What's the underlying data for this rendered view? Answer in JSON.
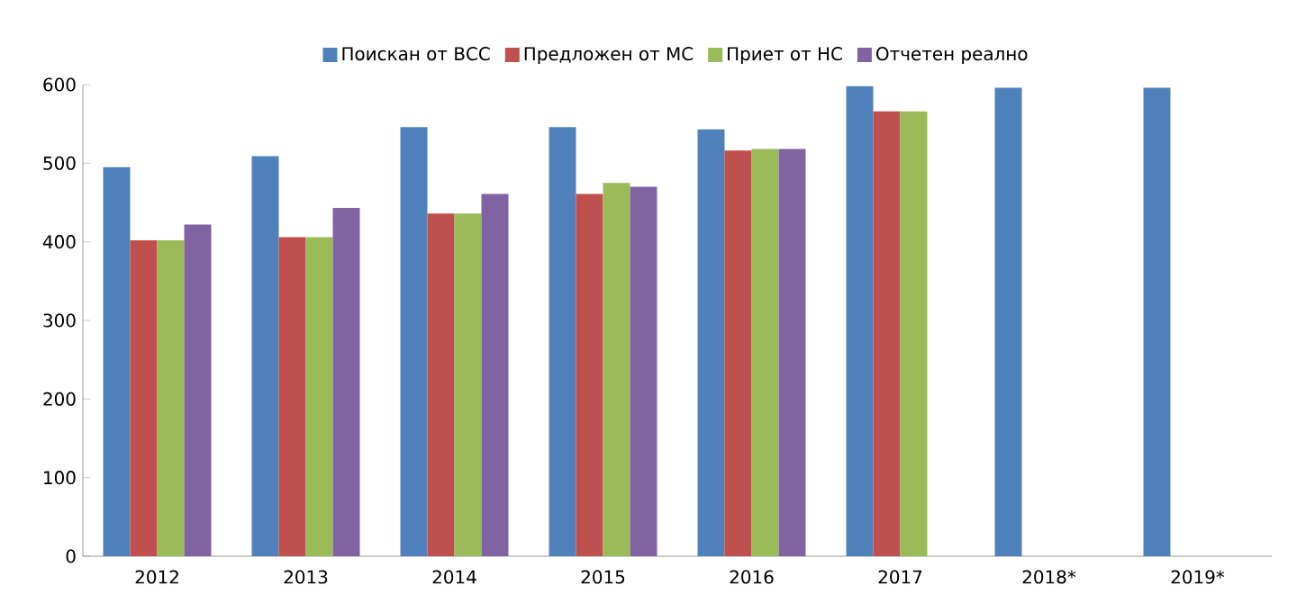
{
  "chart_data": {
    "type": "bar",
    "categories": [
      "2012",
      "2013",
      "2014",
      "2015",
      "2016",
      "2017",
      "2018*",
      "2019*"
    ],
    "series": [
      {
        "name": "Поискан от ВСС",
        "color": "#4f81bd",
        "values": [
          495,
          509,
          546,
          546,
          543,
          598,
          596,
          596
        ]
      },
      {
        "name": "Предложен от МС",
        "color": "#c0504d",
        "values": [
          402,
          406,
          436,
          461,
          516,
          566,
          null,
          null
        ]
      },
      {
        "name": "Приет от НС",
        "color": "#9bbb59",
        "values": [
          402,
          406,
          436,
          475,
          518,
          566,
          null,
          null
        ]
      },
      {
        "name": "Отчетен реално",
        "color": "#8064a2",
        "values": [
          422,
          443,
          461,
          470,
          518,
          null,
          null,
          null
        ]
      }
    ],
    "ylim": [
      0,
      600
    ],
    "yticks": [
      0,
      100,
      200,
      300,
      400,
      500,
      600
    ],
    "grid": false,
    "legend": "top"
  }
}
